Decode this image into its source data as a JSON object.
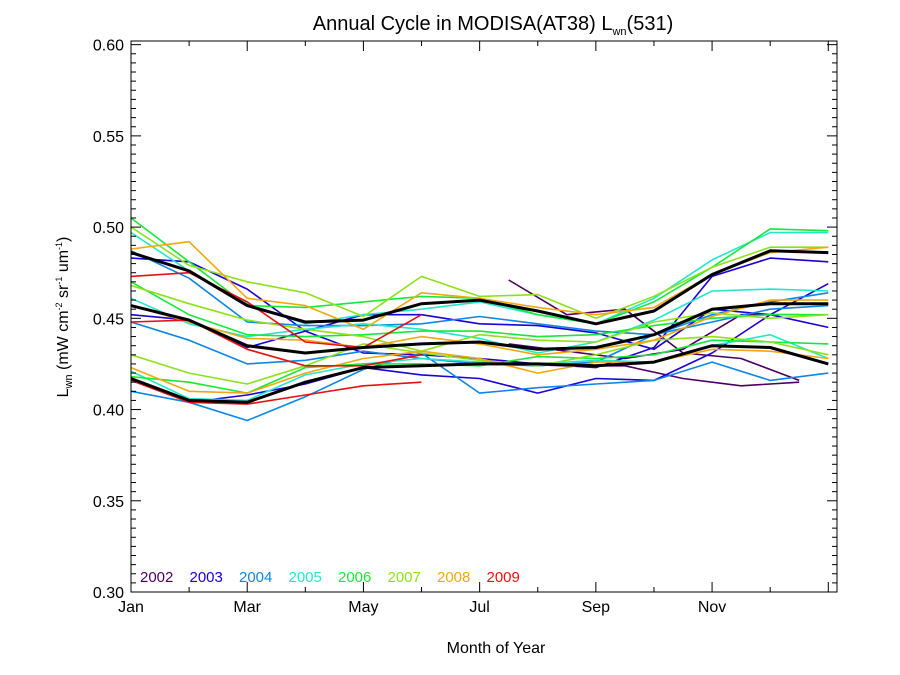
{
  "chart_data": {
    "type": "line",
    "title": {
      "prefix": "Annual Cycle in MODISA(AT38) L",
      "subscript": "wn",
      "suffix": "(531)"
    },
    "xlabel": "Month of Year",
    "ylabel": {
      "L": "L",
      "L_sub": "wn",
      "p1": " (mW cm",
      "s1": "-2",
      "p2": " sr",
      "s2": "-1",
      "p3": " um",
      "s3": "-1",
      "p4": ")"
    },
    "x_tick_labels": [
      "Jan",
      "Mar",
      "May",
      "Jul",
      "Sep",
      "Nov"
    ],
    "x_tick_positions": [
      1,
      3,
      5,
      7,
      9,
      11
    ],
    "xlim": [
      1,
      13.15
    ],
    "y_ticks": [
      0.3,
      0.35,
      0.4,
      0.45,
      0.5,
      0.55,
      0.6
    ],
    "y_tick_labels": [
      "0.30",
      "0.35",
      "0.40",
      "0.45",
      "0.50",
      "0.55",
      "0.60"
    ],
    "ylim": [
      0.3,
      0.602
    ],
    "legend_position": "bottom-left",
    "series": [
      {
        "name": "2002",
        "color": "#4b0060",
        "x": [
          7.5,
          8.5,
          9.5,
          10.5,
          11.5,
          12.5
        ],
        "y": [
          0.436,
          0.432,
          0.428,
          0.433,
          0.452,
          0.452
        ]
      },
      {
        "name": "",
        "color": "#4b0060",
        "x": [
          7.5,
          8.5,
          9.5,
          10.5,
          11.5,
          12.5
        ],
        "y": [
          0.471,
          0.452,
          0.455,
          0.431,
          0.428,
          0.416
        ]
      },
      {
        "name": "",
        "color": "#4b0060",
        "x": [
          7.5,
          8.5,
          9.5,
          10.5,
          11.5,
          12.5
        ],
        "y": [
          0.425,
          0.424,
          0.424,
          0.417,
          0.413,
          0.415
        ]
      },
      {
        "name": "2003",
        "color": "#1c00d8",
        "x": [
          1,
          2,
          3,
          4,
          5,
          6,
          7,
          8,
          9,
          10,
          11,
          12,
          13
        ],
        "y": [
          0.452,
          0.449,
          0.434,
          0.443,
          0.452,
          0.452,
          0.447,
          0.446,
          0.442,
          0.433,
          0.455,
          0.452,
          0.469
        ]
      },
      {
        "name": "",
        "color": "#1c00d8",
        "x": [
          1,
          2,
          3,
          4,
          5,
          6,
          7,
          8,
          9,
          10,
          11,
          12,
          13
        ],
        "y": [
          0.417,
          0.404,
          0.408,
          0.414,
          0.423,
          0.419,
          0.417,
          0.409,
          0.417,
          0.416,
          0.431,
          0.452,
          0.445
        ]
      },
      {
        "name": "",
        "color": "#1c00d8",
        "x": [
          1,
          2,
          3,
          4,
          5,
          6,
          7,
          8,
          9,
          10,
          11,
          12,
          13
        ],
        "y": [
          0.483,
          0.481,
          0.466,
          0.443,
          0.431,
          0.43,
          0.428,
          0.425,
          0.423,
          0.434,
          0.473,
          0.483,
          0.481
        ]
      },
      {
        "name": "2004",
        "color": "#0d86e6",
        "x": [
          1,
          2,
          3,
          4,
          5,
          6,
          7,
          8,
          9,
          10,
          11,
          12,
          13
        ],
        "y": [
          0.41,
          0.404,
          0.394,
          0.407,
          0.422,
          0.431,
          0.409,
          0.412,
          0.414,
          0.416,
          0.426,
          0.416,
          0.42
        ]
      },
      {
        "name": "",
        "color": "#0d86e6",
        "x": [
          1,
          2,
          3,
          4,
          5,
          6,
          7,
          8,
          9,
          10,
          11,
          12,
          13
        ],
        "y": [
          0.448,
          0.438,
          0.425,
          0.427,
          0.432,
          0.428,
          0.425,
          0.424,
          0.426,
          0.441,
          0.452,
          0.459,
          0.464
        ]
      },
      {
        "name": "",
        "color": "#0d86e6",
        "x": [
          1,
          2,
          3,
          4,
          5,
          6,
          7,
          8,
          9,
          10,
          11,
          12,
          13
        ],
        "y": [
          0.487,
          0.472,
          0.448,
          0.446,
          0.446,
          0.447,
          0.451,
          0.447,
          0.443,
          0.441,
          0.448,
          0.455,
          0.457
        ]
      },
      {
        "name": "2005",
        "color": "#22e8c8",
        "x": [
          1,
          2,
          3,
          4,
          5,
          6,
          7,
          8,
          9,
          10,
          11,
          12,
          13
        ],
        "y": [
          0.497,
          0.476,
          0.458,
          0.447,
          0.452,
          0.455,
          0.459,
          0.452,
          0.447,
          0.461,
          0.482,
          0.497,
          0.497
        ]
      },
      {
        "name": "",
        "color": "#22e8c8",
        "x": [
          1,
          2,
          3,
          4,
          5,
          6,
          7,
          8,
          9,
          10,
          11,
          12,
          13
        ],
        "y": [
          0.461,
          0.447,
          0.44,
          0.444,
          0.447,
          0.444,
          0.439,
          0.431,
          0.437,
          0.449,
          0.465,
          0.466,
          0.465
        ]
      },
      {
        "name": "",
        "color": "#22e8c8",
        "x": [
          1,
          2,
          3,
          4,
          5,
          6,
          7,
          8,
          9,
          10,
          11,
          12,
          13
        ],
        "y": [
          0.421,
          0.406,
          0.405,
          0.419,
          0.425,
          0.428,
          0.426,
          0.425,
          0.427,
          0.426,
          0.435,
          0.441,
          0.428
        ]
      },
      {
        "name": "2006",
        "color": "#18e83a",
        "x": [
          1,
          2,
          3,
          4,
          5,
          6,
          7,
          8,
          9,
          10,
          11,
          12,
          13
        ],
        "y": [
          0.505,
          0.481,
          0.457,
          0.456,
          0.459,
          0.462,
          0.461,
          0.452,
          0.447,
          0.459,
          0.478,
          0.499,
          0.498
        ]
      },
      {
        "name": "",
        "color": "#18e83a",
        "x": [
          1,
          2,
          3,
          4,
          5,
          6,
          7,
          8,
          9,
          10,
          11,
          12,
          13
        ],
        "y": [
          0.47,
          0.452,
          0.441,
          0.44,
          0.441,
          0.443,
          0.443,
          0.44,
          0.441,
          0.446,
          0.45,
          0.452,
          0.452
        ]
      },
      {
        "name": "",
        "color": "#18e83a",
        "x": [
          1,
          2,
          3,
          4,
          5,
          6,
          7,
          8,
          9,
          10,
          11,
          12,
          13
        ],
        "y": [
          0.418,
          0.415,
          0.409,
          0.423,
          0.425,
          0.425,
          0.424,
          0.429,
          0.428,
          0.43,
          0.438,
          0.437,
          0.436
        ]
      },
      {
        "name": "2007",
        "color": "#8ce21a",
        "x": [
          1,
          2,
          3,
          4,
          5,
          6,
          7,
          8,
          9,
          10,
          11,
          12,
          13
        ],
        "y": [
          0.5,
          0.479,
          0.47,
          0.464,
          0.451,
          0.473,
          0.462,
          0.463,
          0.45,
          0.462,
          0.478,
          0.489,
          0.489
        ]
      },
      {
        "name": "",
        "color": "#8ce21a",
        "x": [
          1,
          2,
          3,
          4,
          5,
          6,
          7,
          8,
          9,
          10,
          11,
          12,
          13
        ],
        "y": [
          0.468,
          0.458,
          0.449,
          0.444,
          0.44,
          0.432,
          0.441,
          0.438,
          0.437,
          0.448,
          0.453,
          0.45,
          0.452
        ]
      },
      {
        "name": "",
        "color": "#8ce21a",
        "x": [
          1,
          2,
          3,
          4,
          5,
          6,
          7,
          8,
          9,
          10,
          11,
          12,
          13
        ],
        "y": [
          0.43,
          0.42,
          0.414,
          0.424,
          0.436,
          0.431,
          0.427,
          0.424,
          0.43,
          0.438,
          0.44,
          0.437,
          0.43
        ]
      },
      {
        "name": "2008",
        "color": "#f0a810",
        "x": [
          1,
          2,
          3,
          4,
          5,
          6,
          7,
          8,
          9,
          10,
          11,
          12,
          13
        ],
        "y": [
          0.488,
          0.492,
          0.461,
          0.457,
          0.444,
          0.464,
          0.461,
          0.456,
          0.452,
          0.456,
          0.474,
          0.486,
          0.489
        ]
      },
      {
        "name": "",
        "color": "#f0a810",
        "x": [
          1,
          2,
          3,
          4,
          5,
          6,
          7,
          8,
          9,
          10,
          11,
          12,
          13
        ],
        "y": [
          0.457,
          0.448,
          0.439,
          0.438,
          0.434,
          0.44,
          0.436,
          0.43,
          0.433,
          0.438,
          0.451,
          0.46,
          0.46
        ]
      },
      {
        "name": "",
        "color": "#f0a810",
        "x": [
          1,
          2,
          3,
          4,
          5,
          6,
          7,
          8,
          9,
          10,
          11,
          12,
          13
        ],
        "y": [
          0.423,
          0.41,
          0.409,
          0.42,
          0.428,
          0.432,
          0.428,
          0.42,
          0.426,
          0.426,
          0.433,
          0.432,
          0.428
        ]
      },
      {
        "name": "2009",
        "color": "#e81010",
        "x": [
          1,
          2,
          3,
          4,
          5,
          6
        ],
        "y": [
          0.473,
          0.475,
          0.459,
          0.437,
          0.434,
          0.452
        ]
      },
      {
        "name": "",
        "color": "#e81010",
        "x": [
          1,
          2,
          3,
          4,
          5,
          6
        ],
        "y": [
          0.448,
          0.449,
          0.433,
          0.424,
          0.424,
          0.43
        ]
      },
      {
        "name": "",
        "color": "#e81010",
        "x": [
          1,
          2,
          3,
          4,
          5,
          6
        ],
        "y": [
          0.416,
          0.404,
          0.403,
          0.408,
          0.413,
          0.415
        ]
      },
      {
        "name": "",
        "color": "#000000",
        "x": [
          1,
          2,
          3,
          4,
          5,
          6,
          7,
          8,
          9,
          10,
          11,
          12,
          13
        ],
        "y": [
          0.486,
          0.476,
          0.457,
          0.448,
          0.449,
          0.458,
          0.46,
          0.454,
          0.447,
          0.454,
          0.474,
          0.487,
          0.486
        ]
      },
      {
        "name": "",
        "color": "#000000",
        "x": [
          1,
          2,
          3,
          4,
          5,
          6,
          7,
          8,
          9,
          10,
          11,
          12,
          13
        ],
        "y": [
          0.457,
          0.449,
          0.435,
          0.431,
          0.434,
          0.436,
          0.437,
          0.433,
          0.434,
          0.441,
          0.455,
          0.458,
          0.458
        ]
      },
      {
        "name": "",
        "color": "#000000",
        "x": [
          1,
          2,
          3,
          4,
          5,
          6,
          7,
          8,
          9,
          10,
          11,
          12,
          13
        ],
        "y": [
          0.417,
          0.405,
          0.404,
          0.415,
          0.423,
          0.424,
          0.425,
          0.425,
          0.424,
          0.426,
          0.435,
          0.434,
          0.425
        ]
      }
    ]
  }
}
